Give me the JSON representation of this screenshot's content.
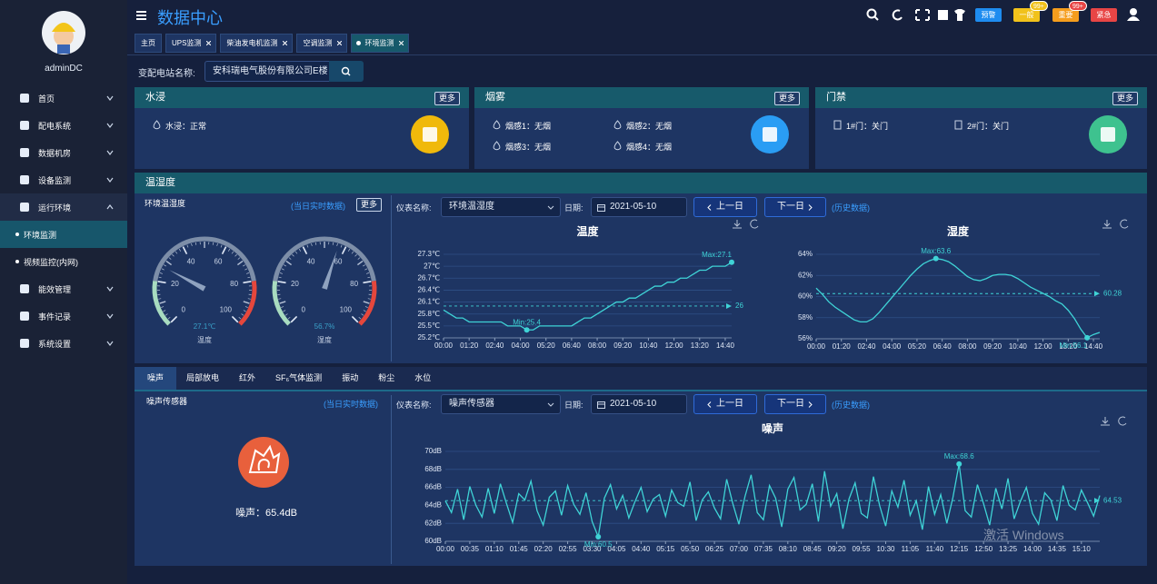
{
  "sidebar": {
    "user": "adminDC",
    "menu": [
      {
        "label": "首页"
      },
      {
        "label": "配电系统"
      },
      {
        "label": "数据机房"
      },
      {
        "label": "设备监测"
      },
      {
        "label": "运行环境",
        "expanded": true,
        "children": [
          {
            "label": "环境监测",
            "active": true
          },
          {
            "label": "视频监控(内网)"
          }
        ]
      },
      {
        "label": "能效管理"
      },
      {
        "label": "事件记录"
      },
      {
        "label": "系统设置"
      }
    ]
  },
  "header": {
    "title": "数据中心",
    "badges": [
      {
        "label": "预警",
        "color": "#1e8cf0"
      },
      {
        "label": "一般",
        "color": "#f1c21b",
        "count": "99+",
        "count_color": "#f1c21b"
      },
      {
        "label": "重要",
        "color": "#f59d1d",
        "count": "99+",
        "count_color": "#e84545"
      },
      {
        "label": "紧急",
        "color": "#e84545"
      }
    ]
  },
  "tabs": [
    {
      "label": "主页"
    },
    {
      "label": "UPS监测",
      "closable": true
    },
    {
      "label": "柴油发电机监测",
      "closable": true
    },
    {
      "label": "空调监测",
      "closable": true
    },
    {
      "label": "环境监测",
      "closable": true,
      "active": true
    }
  ],
  "station": {
    "label": "变配电站名称:",
    "value": "安科瑞电气股份有限公司E楼"
  },
  "panels": [
    {
      "title": "水浸",
      "more": "更多",
      "items": [
        "水浸：正常"
      ],
      "icon_color": "#f0b90b"
    },
    {
      "title": "烟雾",
      "more": "更多",
      "items": [
        "烟感1：无烟",
        "烟感2：无烟",
        "烟感3：无烟",
        "烟感4：无烟"
      ],
      "icon_color": "#2a9df4"
    },
    {
      "title": "门禁",
      "more": "更多",
      "items": [
        "1#门：关门",
        "2#门：关门"
      ],
      "icon_color": "#3ec28f"
    }
  ],
  "env_section": {
    "title": "温湿度",
    "left_title": "环境温湿度",
    "realtime": "(当日实时数据)",
    "more": "更多",
    "controls": {
      "meter_label": "仪表名称:",
      "meter": "环境温湿度",
      "date_label": "日期:",
      "date": "2021-05-10",
      "prev": "上一日",
      "next": "下一日",
      "history": "(历史数据)"
    }
  },
  "noise_section": {
    "tabs": [
      {
        "label": "噪声",
        "active": true
      },
      {
        "label": "局部放电"
      },
      {
        "label": "红外"
      },
      {
        "label": "SF₆气体监测"
      },
      {
        "label": "振动"
      },
      {
        "label": "粉尘"
      },
      {
        "label": "水位"
      }
    ],
    "title": "噪声传感器",
    "realtime": "(当日实时数据)",
    "reading": "噪声：65.4dB",
    "controls": {
      "meter_label": "仪表名称:",
      "meter": "噪声传感器",
      "date_label": "日期:",
      "date": "2021-05-10",
      "prev": "上一日",
      "next": "下一日",
      "history": "(历史数据)"
    }
  },
  "watermark": "激活 Windows",
  "chart_data": [
    {
      "type": "gauge",
      "name": "温度",
      "value": 27.1,
      "value_label": "27.1℃",
      "ylim": [
        0,
        100
      ],
      "yticks": [
        0,
        20,
        40,
        60,
        80,
        100
      ]
    },
    {
      "type": "gauge",
      "name": "湿度",
      "value": 56.7,
      "value_label": "56.7%",
      "ylim": [
        0,
        100
      ],
      "yticks": [
        0,
        20,
        40,
        60,
        80,
        100
      ]
    },
    {
      "type": "line",
      "title": "温度",
      "color": "#3fd3d6",
      "grid": true,
      "categories": [
        "00:00",
        null,
        null,
        null,
        "01:20",
        null,
        null,
        null,
        "02:40",
        null,
        null,
        null,
        "04:00",
        null,
        null,
        null,
        "05:20",
        null,
        null,
        null,
        "06:40",
        null,
        null,
        null,
        "08:00",
        null,
        null,
        null,
        "09:20",
        null,
        null,
        null,
        "10:40",
        null,
        null,
        null,
        "12:00",
        null,
        null,
        null,
        "13:20",
        null,
        null,
        null,
        "14:40",
        null
      ],
      "values": [
        25.9,
        25.8,
        25.7,
        25.7,
        25.6,
        25.6,
        25.6,
        25.6,
        25.6,
        25.6,
        25.5,
        25.5,
        25.5,
        25.4,
        25.4,
        25.5,
        25.5,
        25.5,
        25.5,
        25.5,
        25.5,
        25.6,
        25.7,
        25.7,
        25.8,
        25.9,
        26.0,
        26.1,
        26.1,
        26.2,
        26.2,
        26.3,
        26.4,
        26.5,
        26.5,
        26.6,
        26.6,
        26.7,
        26.7,
        26.8,
        26.9,
        26.9,
        27.0,
        27.0,
        27.0,
        27.1
      ],
      "ylim": [
        25.2,
        27.3
      ],
      "yticks": [
        {
          "value": 25.2,
          "label": "25.2℃"
        },
        {
          "value": 25.5,
          "label": "25.5℃"
        },
        {
          "value": 25.8,
          "label": "25.8℃"
        },
        {
          "value": 26.1,
          "label": "26.1℃"
        },
        {
          "value": 26.4,
          "label": "26.4℃"
        },
        {
          "value": 26.7,
          "label": "26.7℃"
        },
        {
          "value": 27,
          "label": "27℃"
        },
        {
          "value": 27.3,
          "label": "27.3℃"
        }
      ],
      "mark_points": [
        {
          "label": "Max:27.1",
          "value": 27.1
        },
        {
          "label": "Min:25.4",
          "value": 25.4
        }
      ],
      "mean_line": 26
    },
    {
      "type": "line",
      "title": "湿度",
      "color": "#3fd3d6",
      "grid": true,
      "categories": [
        "00:00",
        null,
        null,
        null,
        "01:20",
        null,
        null,
        null,
        "02:40",
        null,
        null,
        null,
        "04:00",
        null,
        null,
        null,
        "05:20",
        null,
        null,
        null,
        "06:40",
        null,
        null,
        null,
        "08:00",
        null,
        null,
        null,
        "09:20",
        null,
        null,
        null,
        "10:40",
        null,
        null,
        null,
        "12:00",
        null,
        null,
        null,
        "13:20",
        null,
        null,
        null,
        "14:40",
        null
      ],
      "values": [
        60.8,
        60.2,
        59.5,
        59.0,
        58.6,
        58.2,
        57.8,
        57.6,
        57.6,
        57.9,
        58.5,
        59.2,
        59.9,
        60.6,
        61.3,
        62.0,
        62.6,
        63.1,
        63.4,
        63.6,
        63.5,
        63.3,
        62.9,
        62.4,
        61.9,
        61.6,
        61.5,
        61.7,
        62.0,
        62.1,
        62.1,
        62.0,
        61.7,
        61.3,
        60.9,
        60.6,
        60.3,
        60.0,
        59.6,
        59.3,
        58.7,
        57.9,
        56.9,
        56.1,
        56.4,
        56.6
      ],
      "ylim": [
        56,
        64
      ],
      "yticks": [
        {
          "value": 56,
          "label": "56%"
        },
        {
          "value": 58,
          "label": "58%"
        },
        {
          "value": 60,
          "label": "60%"
        },
        {
          "value": 62,
          "label": "62%"
        },
        {
          "value": 64,
          "label": "64%"
        }
      ],
      "mark_points": [
        {
          "label": "Max:63.6",
          "value": 63.6
        },
        {
          "label": "Min:56.1",
          "value": 56.1
        }
      ],
      "mean_line": 60.28
    },
    {
      "type": "line",
      "title": "噪声",
      "color": "#3fd3d6",
      "grid": true,
      "categories": [
        "00:00",
        null,
        null,
        null,
        "00:35",
        null,
        null,
        null,
        "01:10",
        null,
        null,
        null,
        "01:45",
        null,
        null,
        null,
        "02:20",
        null,
        null,
        null,
        "02:55",
        null,
        null,
        null,
        "03:30",
        null,
        null,
        null,
        "04:05",
        null,
        null,
        null,
        "04:40",
        null,
        null,
        null,
        "05:15",
        null,
        null,
        null,
        "05:50",
        null,
        null,
        null,
        "06:25",
        null,
        null,
        null,
        "07:00",
        null,
        null,
        null,
        "07:35",
        null,
        null,
        null,
        "08:10",
        null,
        null,
        null,
        "08:45",
        null,
        null,
        null,
        "09:20",
        null,
        null,
        null,
        "09:55",
        null,
        null,
        null,
        "10:30",
        null,
        null,
        null,
        "11:05",
        null,
        null,
        null,
        "11:40",
        null,
        null,
        null,
        "12:15",
        null,
        null,
        null,
        "12:50",
        null,
        null,
        null,
        "13:25",
        null,
        null,
        null,
        "14:00",
        null,
        null,
        null,
        "14:35",
        null,
        null,
        null,
        "15:10",
        null,
        null,
        null
      ],
      "values": [
        64.5,
        63.2,
        65.8,
        62.4,
        66.1,
        64.0,
        62.7,
        65.9,
        63.1,
        66.4,
        64.2,
        62.1,
        65.3,
        64.6,
        66.7,
        63.4,
        61.8,
        64.9,
        65.6,
        62.9,
        66.2,
        64.1,
        63.0,
        65.4,
        62.2,
        60.5,
        64.8,
        66.3,
        63.6,
        65.1,
        62.6,
        64.4,
        66.0,
        63.3,
        64.7,
        65.2,
        62.8,
        65.7,
        64.3,
        63.9,
        66.6,
        62.3,
        64.6,
        65.5,
        63.7,
        62.5,
        66.9,
        64.2,
        61.9,
        65.0,
        67.4,
        63.2,
        62.4,
        66.2,
        64.8,
        61.6,
        65.8,
        67.1,
        63.5,
        64.1,
        66.4,
        62.2,
        67.8,
        63.9,
        65.3,
        61.4,
        64.7,
        66.5,
        63.1,
        62.6,
        67.2,
        64.0,
        61.7,
        65.6,
        63.8,
        66.8,
        62.9,
        64.5,
        61.3,
        66.1,
        63.0,
        65.2,
        62.0,
        64.9,
        68.6,
        63.4,
        62.7,
        66.3,
        64.2,
        61.8,
        65.9,
        63.6,
        67.0,
        62.5,
        64.4,
        66.0,
        63.1,
        61.9,
        65.4,
        64.6,
        62.3,
        66.2,
        64.0,
        63.5,
        65.7,
        64.3,
        62.8,
        65.1
      ],
      "ylim": [
        60,
        70
      ],
      "yticks": [
        {
          "value": 60,
          "label": "60dB"
        },
        {
          "value": 62,
          "label": "62dB"
        },
        {
          "value": 64,
          "label": "64dB"
        },
        {
          "value": 66,
          "label": "66dB"
        },
        {
          "value": 68,
          "label": "68dB"
        },
        {
          "value": 70,
          "label": "70dB"
        }
      ],
      "mark_points": [
        {
          "label": "Max:68.6",
          "value": 68.6
        },
        {
          "label": "Min:60.5",
          "value": 60.5
        }
      ],
      "mean_line": 64.53
    }
  ]
}
